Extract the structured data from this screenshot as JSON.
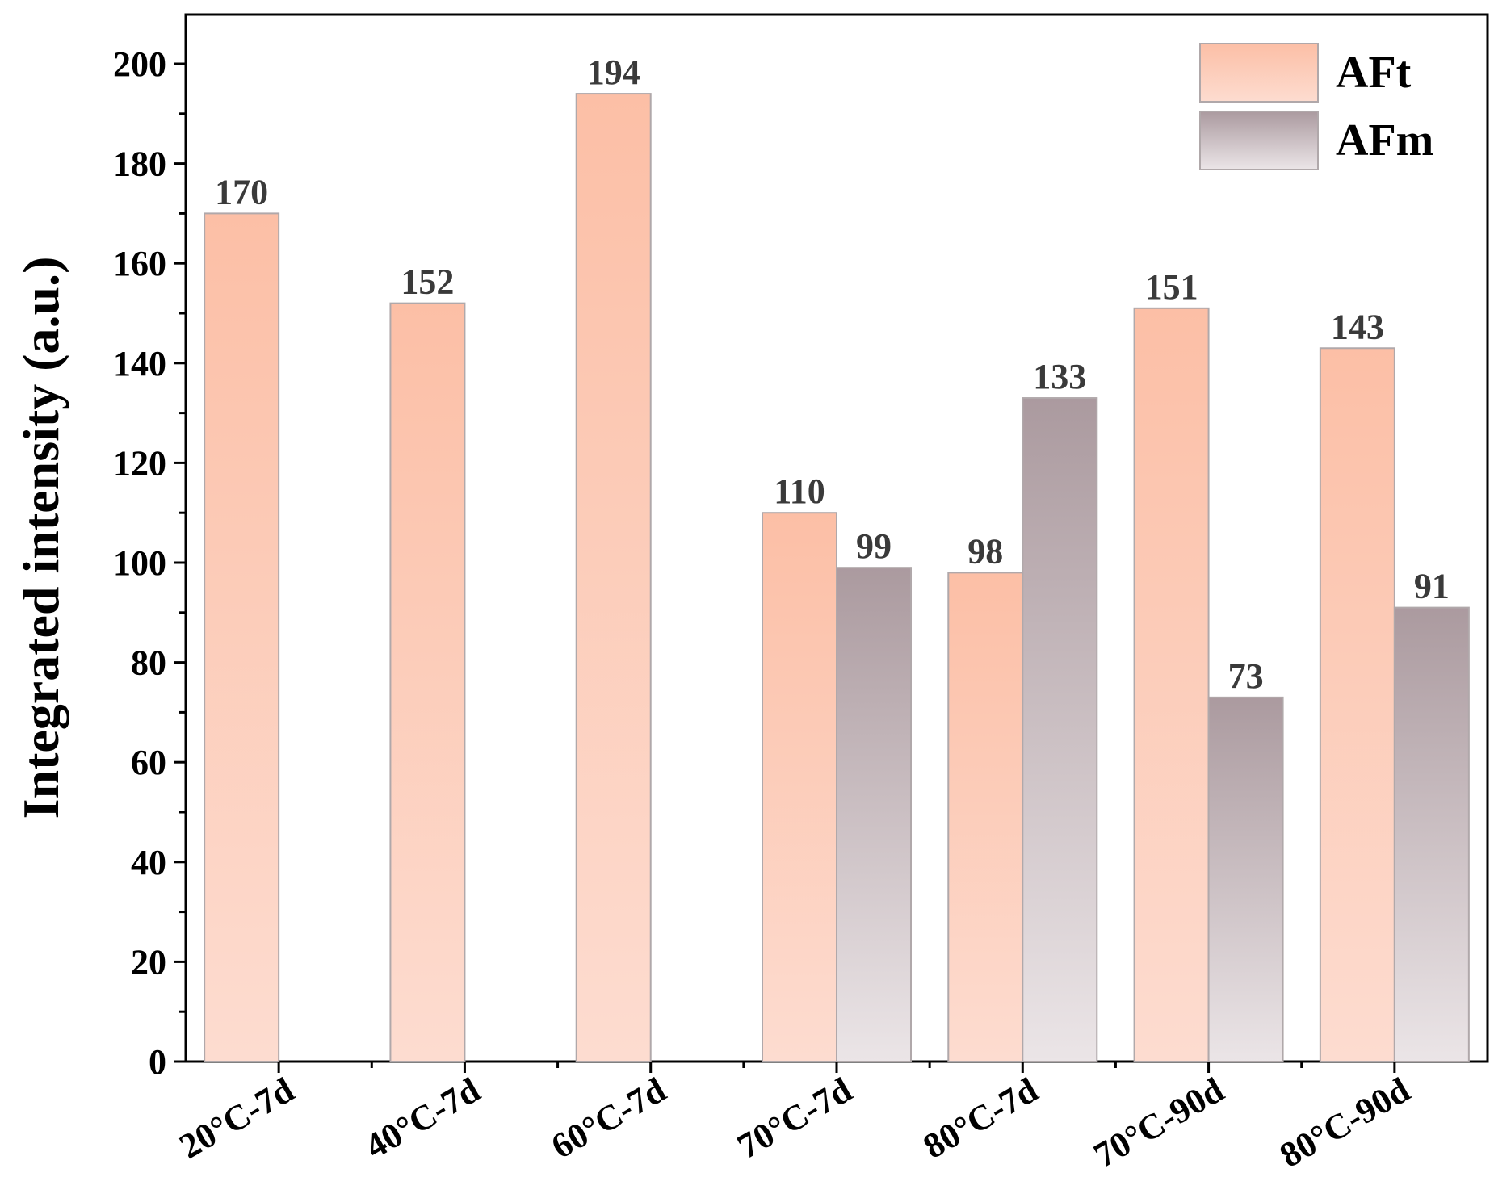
{
  "chart_data": {
    "type": "bar",
    "categories": [
      "20°C-7d",
      "40°C-7d",
      "60°C-7d",
      "70°C-7d",
      "80°C-7d",
      "70°C-90d",
      "80°C-90d"
    ],
    "series": [
      {
        "name": "AFt",
        "values": [
          170,
          152,
          194,
          110,
          98,
          151,
          143
        ],
        "labels": [
          "170",
          "152",
          "194",
          "110",
          "98",
          "151",
          "143"
        ]
      },
      {
        "name": "AFm",
        "values": [
          null,
          null,
          null,
          99,
          133,
          73,
          91
        ],
        "labels": [
          "",
          "",
          "",
          "99",
          "133",
          "73",
          "91"
        ]
      }
    ],
    "title": "",
    "xlabel": "",
    "ylabel": "Integrated intensity (a.u.)",
    "ylim": [
      0,
      210
    ],
    "yticks": [
      "0",
      "20",
      "40",
      "60",
      "80",
      "100",
      "120",
      "140",
      "160",
      "180",
      "200"
    ],
    "grid": false,
    "legend_position": "top-right",
    "colors": {
      "AFt_top": "#fcbfa6",
      "AFt_bottom": "#fddcd0",
      "AFm_top": "#ab9a9f",
      "AFm_bottom": "#ebe5e7",
      "bar_edge": "#b0a8aa",
      "label": "#3a3a3a"
    }
  }
}
